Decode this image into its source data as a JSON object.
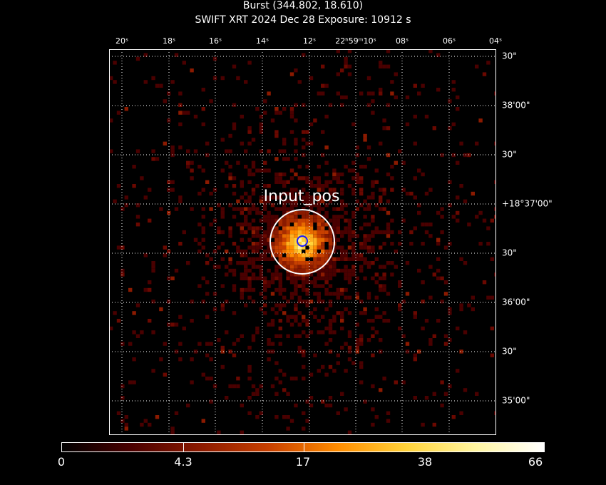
{
  "header": {
    "title": "Burst (344.802, 18.610)",
    "subtitle": "SWIFT XRT   2024 Dec 28    Exposure: 10912 s"
  },
  "ra_labels": [
    "20ˢ",
    "18ˢ",
    "16ˢ",
    "14ˢ",
    "12ˢ",
    "22ʰ59ᵐ10ˢ",
    "08ˢ",
    "06ˢ",
    "04ˢ"
  ],
  "dec_labels": [
    "30\"",
    "38'00\"",
    "30\"",
    "+18°37'00\"",
    "30\"",
    "36'00\"",
    "30\"",
    "35'00\""
  ],
  "source": {
    "label": "Input_pos"
  },
  "colorbar": {
    "labels": [
      "0",
      "4.3",
      "17",
      "38",
      "66"
    ],
    "stops": [
      "#000000",
      "#4a0000",
      "#8b1a00",
      "#c84000",
      "#ff8c00",
      "#ffd23a",
      "#fff5a0",
      "#ffffff"
    ]
  },
  "colors": {
    "grid": "#ffffff",
    "region_outer": "#ffffff",
    "region_inner": "#1a1aff"
  }
}
